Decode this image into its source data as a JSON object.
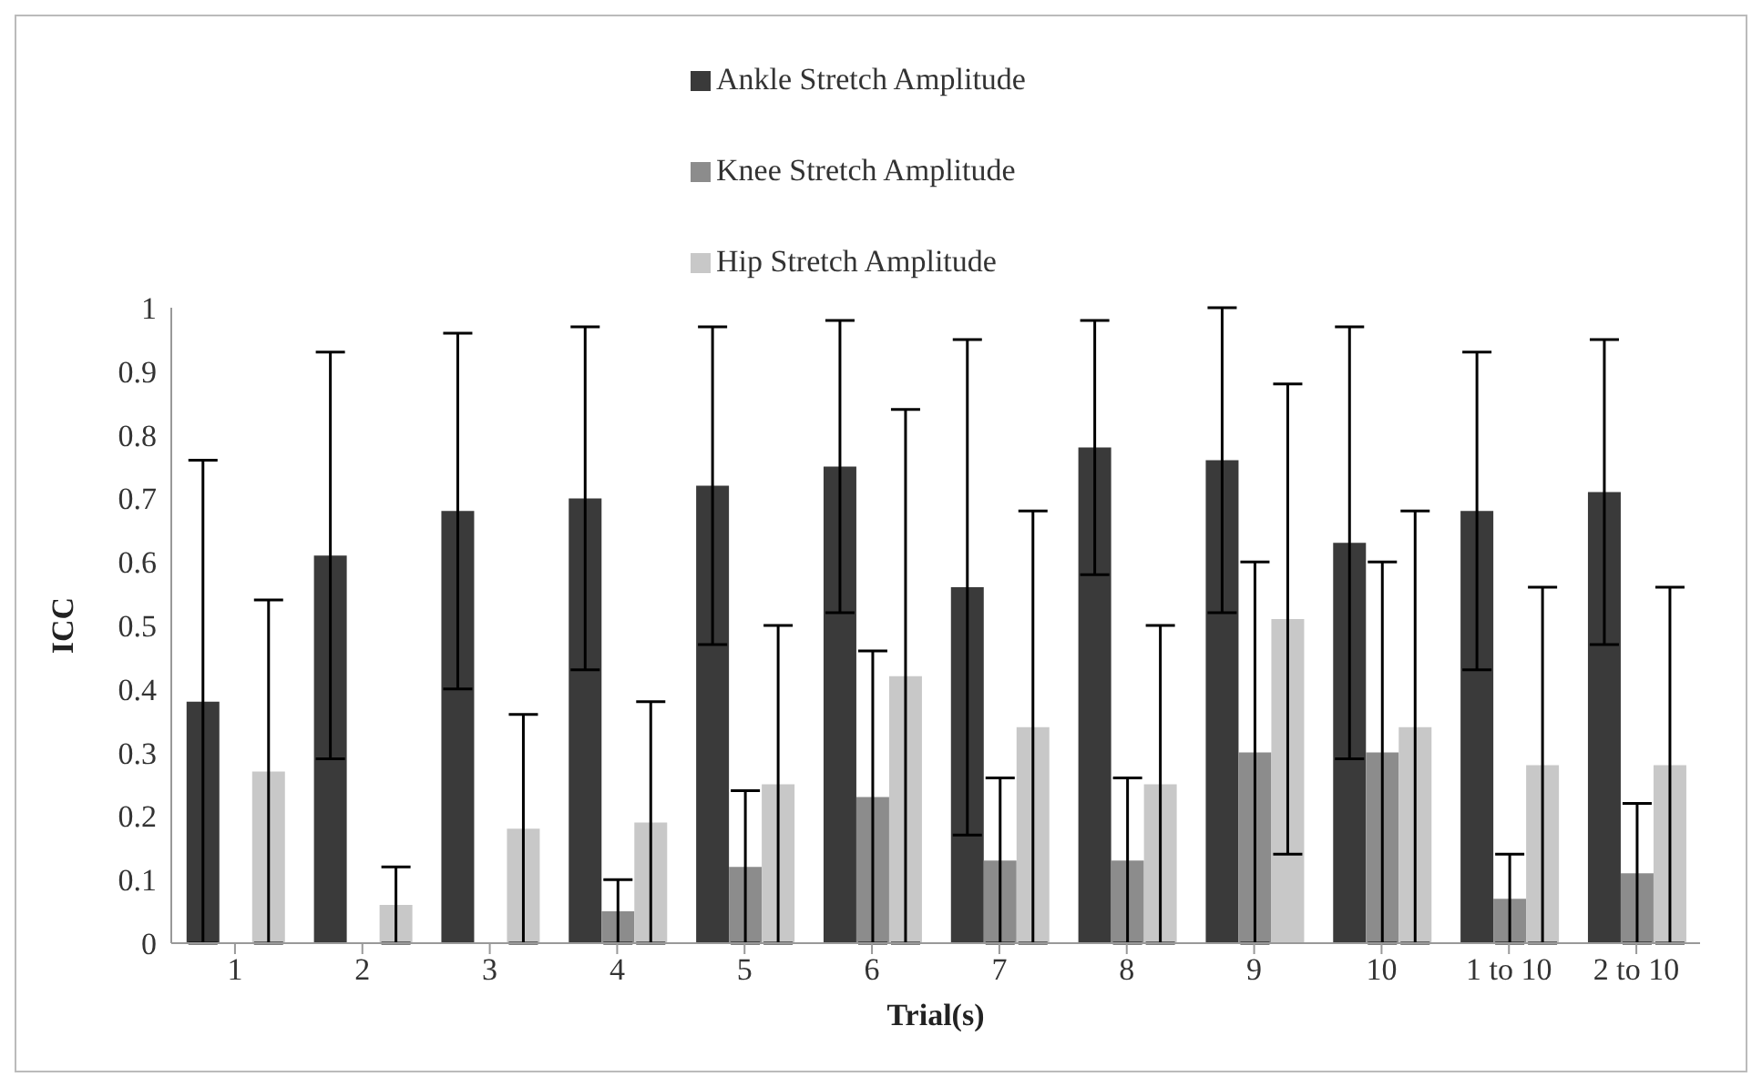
{
  "chart_data": {
    "type": "bar",
    "xlabel": "Trial(s)",
    "ylabel": "ICC",
    "categories": [
      "1",
      "2",
      "3",
      "4",
      "5",
      "6",
      "7",
      "8",
      "9",
      "10",
      "1 to 10",
      "2 to 10"
    ],
    "series": [
      {
        "name": "Ankle Stretch Amplitude",
        "color": "#3a3a3a",
        "values": [
          0.38,
          0.61,
          0.68,
          0.7,
          0.72,
          0.75,
          0.56,
          0.78,
          0.76,
          0.63,
          0.68,
          0.71
        ],
        "errors": [
          [
            0,
            0.76
          ],
          [
            0.29,
            0.93
          ],
          [
            0.4,
            0.96
          ],
          [
            0.43,
            0.97
          ],
          [
            0.47,
            0.97
          ],
          [
            0.52,
            0.98
          ],
          [
            0.17,
            0.95
          ],
          [
            0.58,
            0.98
          ],
          [
            0.52,
            1.0
          ],
          [
            0.29,
            0.97
          ],
          [
            0.43,
            0.93
          ],
          [
            0.47,
            0.95
          ]
        ]
      },
      {
        "name": "Knee Stretch Amplitude",
        "color": "#8c8c8c",
        "values": [
          null,
          null,
          null,
          0.05,
          0.12,
          0.23,
          0.13,
          0.13,
          0.3,
          0.3,
          0.07,
          0.11
        ],
        "errors": [
          null,
          null,
          null,
          [
            0,
            0.1
          ],
          [
            0,
            0.24
          ],
          [
            0,
            0.46
          ],
          [
            0,
            0.26
          ],
          [
            0,
            0.26
          ],
          [
            0,
            0.6
          ],
          [
            0,
            0.6
          ],
          [
            0,
            0.14
          ],
          [
            0,
            0.22
          ]
        ]
      },
      {
        "name": "Hip Stretch Amplitude",
        "color": "#c8c8c8",
        "values": [
          0.27,
          0.06,
          0.18,
          0.19,
          0.25,
          0.42,
          0.34,
          0.25,
          0.51,
          0.34,
          0.28,
          0.28
        ],
        "errors": [
          [
            0,
            0.54
          ],
          [
            0,
            0.12
          ],
          [
            0,
            0.36
          ],
          [
            0,
            0.38
          ],
          [
            0,
            0.5
          ],
          [
            0,
            0.84
          ],
          [
            0,
            0.68
          ],
          [
            0,
            0.5
          ],
          [
            0.14,
            0.88
          ],
          [
            0,
            0.68
          ],
          [
            0,
            0.56
          ],
          [
            0,
            0.56
          ]
        ]
      }
    ],
    "ylim": [
      0,
      1
    ],
    "yticks": [
      0,
      0.1,
      0.2,
      0.3,
      0.4,
      0.5,
      0.6,
      0.7,
      0.8,
      0.9,
      1
    ],
    "grid": false,
    "legend": "top"
  }
}
